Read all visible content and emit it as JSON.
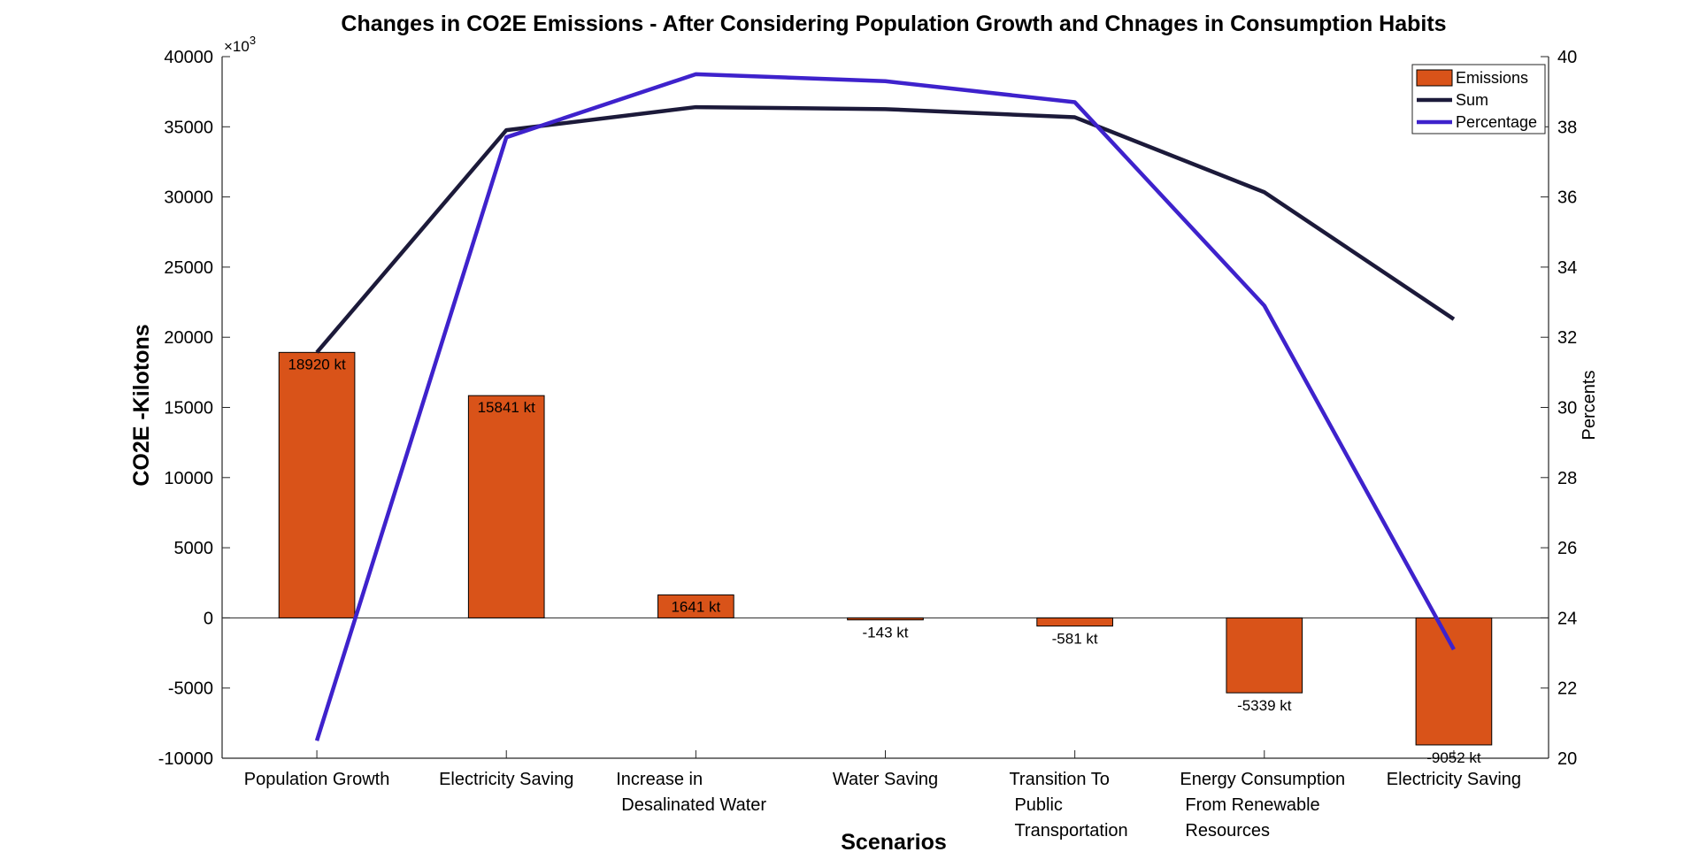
{
  "chart_data": {
    "type": "bar",
    "title": "Changes in CO2E Emissions - After Considering Population Growth and Chnages in Consumption Habits",
    "xlabel": "Scenarios",
    "ylabel": "CO2E -Kilotons",
    "y2label": "Percents",
    "categories": [
      [
        "Population Growth"
      ],
      [
        "Electricity Saving"
      ],
      [
        "Increase in",
        "Desalinated Water"
      ],
      [
        "Water Saving"
      ],
      [
        "Transition To",
        "Public",
        "Transportation"
      ],
      [
        "Energy Consumption",
        "From Renewable",
        "Resources"
      ],
      [
        "Electricity Saving"
      ]
    ],
    "series": [
      {
        "name": "Emissions",
        "kind": "bar",
        "axis": "left",
        "color": "#D95319",
        "values": [
          18920,
          15841,
          1641,
          -143,
          -581,
          -5339,
          -9052
        ],
        "labels": [
          "18920 kt",
          "15841 kt",
          "1641 kt",
          "-143 kt",
          "-581 kt",
          "-5339 kt",
          "-9052 kt"
        ]
      },
      {
        "name": "Sum",
        "kind": "line",
        "axis": "left",
        "color": "#1C1A3A",
        "values": [
          18920,
          34761,
          36402,
          36259,
          35678,
          30339,
          21287
        ]
      },
      {
        "name": "Percentage",
        "kind": "line",
        "axis": "right",
        "color": "#3E22CC",
        "values": [
          20.5,
          37.7,
          39.5,
          39.3,
          38.7,
          32.9,
          23.1
        ]
      }
    ],
    "ylim": [
      -10000,
      40000
    ],
    "yticks": [
      -10000,
      -5000,
      0,
      5000,
      10000,
      15000,
      20000,
      25000,
      30000,
      35000,
      40000
    ],
    "y_exponent_label": "×10",
    "y_exponent_power": "3",
    "y2lim": [
      20,
      40
    ],
    "y2ticks": [
      20,
      22,
      24,
      26,
      28,
      30,
      32,
      34,
      36,
      38,
      40
    ],
    "legend_position": "top-right",
    "grid": false
  }
}
